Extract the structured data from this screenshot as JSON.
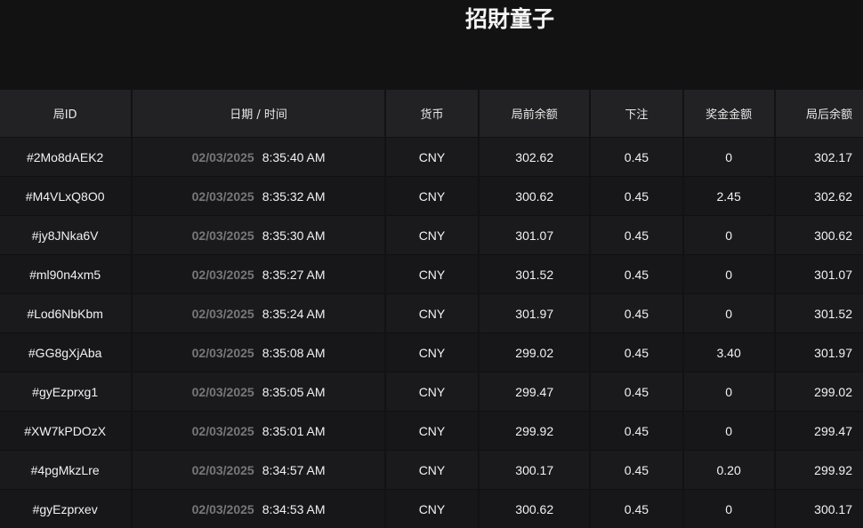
{
  "title": "招財童子",
  "table": {
    "headers": [
      "局ID",
      "日期 / 时间",
      "货币",
      "局前余额",
      "下注",
      "奖金金额",
      "局后余额"
    ],
    "rows": [
      {
        "id": "#2Mo8dAEK2",
        "date": "02/03/2025",
        "time": "8:35:40 AM",
        "currency": "CNY",
        "before": "302.62",
        "bet": "0.45",
        "win": "0",
        "after": "302.17"
      },
      {
        "id": "#M4VLxQ8O0",
        "date": "02/03/2025",
        "time": "8:35:32 AM",
        "currency": "CNY",
        "before": "300.62",
        "bet": "0.45",
        "win": "2.45",
        "after": "302.62"
      },
      {
        "id": "#jy8JNka6V",
        "date": "02/03/2025",
        "time": "8:35:30 AM",
        "currency": "CNY",
        "before": "301.07",
        "bet": "0.45",
        "win": "0",
        "after": "300.62"
      },
      {
        "id": "#ml90n4xm5",
        "date": "02/03/2025",
        "time": "8:35:27 AM",
        "currency": "CNY",
        "before": "301.52",
        "bet": "0.45",
        "win": "0",
        "after": "301.07"
      },
      {
        "id": "#Lod6NbKbm",
        "date": "02/03/2025",
        "time": "8:35:24 AM",
        "currency": "CNY",
        "before": "301.97",
        "bet": "0.45",
        "win": "0",
        "after": "301.52"
      },
      {
        "id": "#GG8gXjAba",
        "date": "02/03/2025",
        "time": "8:35:08 AM",
        "currency": "CNY",
        "before": "299.02",
        "bet": "0.45",
        "win": "3.40",
        "after": "301.97"
      },
      {
        "id": "#gyEzprxg1",
        "date": "02/03/2025",
        "time": "8:35:05 AM",
        "currency": "CNY",
        "before": "299.47",
        "bet": "0.45",
        "win": "0",
        "after": "299.02"
      },
      {
        "id": "#XW7kPDOzX",
        "date": "02/03/2025",
        "time": "8:35:01 AM",
        "currency": "CNY",
        "before": "299.92",
        "bet": "0.45",
        "win": "0",
        "after": "299.47"
      },
      {
        "id": "#4pgMkzLre",
        "date": "02/03/2025",
        "time": "8:34:57 AM",
        "currency": "CNY",
        "before": "300.17",
        "bet": "0.45",
        "win": "0.20",
        "after": "299.92"
      },
      {
        "id": "#gyEzprxev",
        "date": "02/03/2025",
        "time": "8:34:53 AM",
        "currency": "CNY",
        "before": "300.62",
        "bet": "0.45",
        "win": "0",
        "after": "300.17"
      }
    ]
  }
}
